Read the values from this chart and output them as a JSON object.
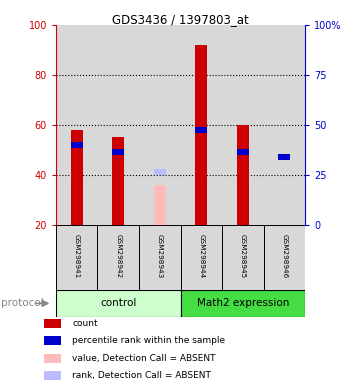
{
  "title": "GDS3436 / 1397803_at",
  "samples": [
    "GSM298941",
    "GSM298942",
    "GSM298943",
    "GSM298944",
    "GSM298945",
    "GSM298946"
  ],
  "red_values": [
    58,
    55,
    null,
    92,
    60,
    null
  ],
  "blue_values": [
    52,
    49,
    null,
    58,
    49,
    47
  ],
  "pink_values": [
    null,
    null,
    36,
    null,
    null,
    null
  ],
  "lightblue_values": [
    null,
    null,
    41,
    null,
    null,
    null
  ],
  "ylim_left": [
    20,
    100
  ],
  "yticks_left": [
    20,
    40,
    60,
    80,
    100
  ],
  "ytick_labels_right": [
    "0",
    "25",
    "50",
    "75",
    "100%"
  ],
  "left_color": "#cc0000",
  "right_color": "#0000cc",
  "bg_color": "#d8d8d8",
  "ctrl_color": "#ccffcc",
  "math_color": "#44dd44",
  "legend_items": [
    {
      "color": "#cc0000",
      "label": "count"
    },
    {
      "color": "#0000cc",
      "label": "percentile rank within the sample"
    },
    {
      "color": "#ffbbbb",
      "label": "value, Detection Call = ABSENT"
    },
    {
      "color": "#bbbbff",
      "label": "rank, Detection Call = ABSENT"
    }
  ]
}
